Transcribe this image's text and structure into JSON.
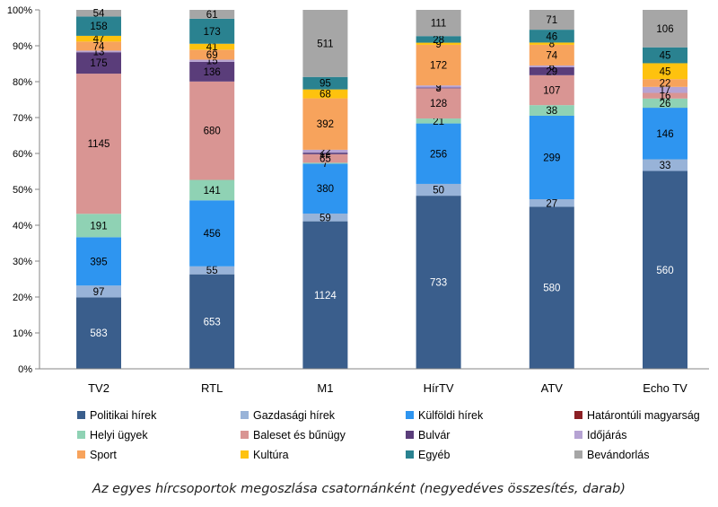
{
  "caption": "Az egyes hírcsoportok megoszlása csatornánként (negyedéves összesítés, darab)",
  "chart_data": {
    "type": "bar",
    "stacked": "percent",
    "categories": [
      "TV2",
      "RTL",
      "M1",
      "HírTV",
      "ATV",
      "Echo TV"
    ],
    "y_ticks": [
      "0%",
      "10%",
      "20%",
      "30%",
      "40%",
      "50%",
      "60%",
      "70%",
      "80%",
      "90%",
      "100%"
    ],
    "ylim": [
      0,
      100
    ],
    "grid": false,
    "legend_position": "bottom",
    "series": [
      {
        "name": "Politikai hírek",
        "color": "#3a5e8c",
        "label_color": "#ffffff",
        "values": [
          583,
          653,
          1124,
          733,
          580,
          560
        ]
      },
      {
        "name": "Gazdasági hírek",
        "color": "#98b3d8",
        "label_color": "#000000",
        "values": [
          97,
          55,
          59,
          50,
          27,
          33
        ]
      },
      {
        "name": "Külföldi hírek",
        "color": "#2e95f0",
        "label_color": "#000000",
        "values": [
          395,
          456,
          380,
          256,
          299,
          146
        ]
      },
      {
        "name": "Határontúli magyarság",
        "color": "#8b1f24",
        "label_color": "#000000",
        "values": [
          0,
          0,
          0,
          0,
          0,
          0
        ]
      },
      {
        "name": "Helyi ügyek",
        "color": "#8fd2b4",
        "label_color": "#000000",
        "values": [
          191,
          141,
          7,
          21,
          38,
          26
        ]
      },
      {
        "name": "Baleset és bűnügy",
        "color": "#d99593",
        "label_color": "#000000",
        "values": [
          1145,
          680,
          65,
          128,
          107,
          16
        ]
      },
      {
        "name": "Bulvár",
        "color": "#5a3d7a",
        "label_color": "#000000",
        "values": [
          175,
          136,
          12,
          3,
          29,
          0
        ]
      },
      {
        "name": "Időjárás",
        "color": "#b6a3d3",
        "label_color": "#000000",
        "values": [
          13,
          15,
          22,
          9,
          6,
          17
        ]
      },
      {
        "name": "Sport",
        "color": "#f7a35c",
        "label_color": "#000000",
        "values": [
          74,
          69,
          392,
          172,
          74,
          22
        ]
      },
      {
        "name": "Kultúra",
        "color": "#fec20e",
        "label_color": "#000000",
        "values": [
          47,
          41,
          68,
          9,
          8,
          45
        ]
      },
      {
        "name": "Egyéb",
        "color": "#2a8290",
        "label_color": "#000000",
        "values": [
          158,
          173,
          95,
          28,
          46,
          45
        ]
      },
      {
        "name": "Bevándorlás",
        "color": "#a6a6a6",
        "label_color": "#000000",
        "values": [
          54,
          61,
          511,
          111,
          71,
          106
        ]
      }
    ]
  }
}
